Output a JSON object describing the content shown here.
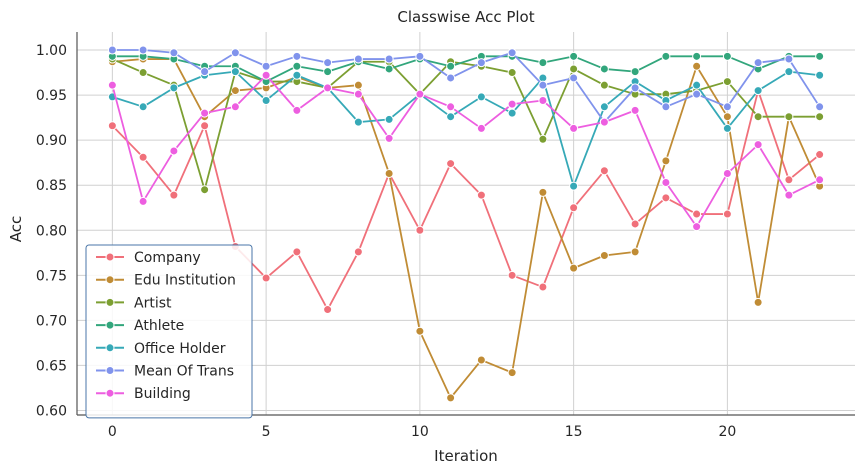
{
  "chart_data": {
    "type": "line",
    "title": "Classwise Acc Plot",
    "xlabel": "Iteration",
    "ylabel": "Acc",
    "xlim": [
      -1.15,
      24.15
    ],
    "ylim": [
      0.595,
      1.02
    ],
    "xticks": [
      0,
      5,
      10,
      15,
      20
    ],
    "yticks": [
      0.6,
      0.65,
      0.7,
      0.75,
      0.8,
      0.85,
      0.9,
      0.95,
      1.0
    ],
    "grid": true,
    "legend_position": "lower-left",
    "x": [
      0,
      1,
      2,
      3,
      4,
      5,
      6,
      7,
      8,
      9,
      10,
      11,
      12,
      13,
      14,
      15,
      16,
      17,
      18,
      19,
      20,
      21,
      22,
      23
    ],
    "series": [
      {
        "name": "Company",
        "color": "#f0707a",
        "values": [
          0.916,
          0.881,
          0.839,
          0.916,
          0.782,
          0.747,
          0.776,
          0.712,
          0.776,
          0.863,
          0.8,
          0.874,
          0.839,
          0.75,
          0.737,
          0.825,
          0.866,
          0.807,
          0.836,
          0.818,
          0.818,
          0.955,
          0.856,
          0.884
        ]
      },
      {
        "name": "Edu Institution",
        "color": "#c08c35",
        "values": [
          0.987,
          0.99,
          0.99,
          0.926,
          0.955,
          0.958,
          0.97,
          0.958,
          0.961,
          0.863,
          0.688,
          0.614,
          0.656,
          0.642,
          0.842,
          0.758,
          0.772,
          0.776,
          0.877,
          0.982,
          0.926,
          0.72,
          0.926,
          0.849
        ]
      },
      {
        "name": "Artist",
        "color": "#7c9f32",
        "values": [
          0.99,
          0.975,
          0.961,
          0.845,
          0.976,
          0.965,
          0.965,
          0.958,
          0.987,
          0.987,
          0.951,
          0.987,
          0.982,
          0.975,
          0.901,
          0.979,
          0.961,
          0.951,
          0.951,
          0.955,
          0.965,
          0.926,
          0.926,
          0.926
        ]
      },
      {
        "name": "Athlete",
        "color": "#32a67c",
        "values": [
          0.993,
          0.993,
          0.99,
          0.982,
          0.982,
          0.965,
          0.982,
          0.976,
          0.987,
          0.979,
          0.99,
          0.982,
          0.993,
          0.993,
          0.986,
          0.993,
          0.979,
          0.976,
          0.993,
          0.993,
          0.993,
          0.979,
          0.993,
          0.993
        ]
      },
      {
        "name": "Office Holder",
        "color": "#36a9b7",
        "values": [
          0.948,
          0.937,
          0.958,
          0.972,
          0.976,
          0.944,
          0.972,
          0.958,
          0.92,
          0.923,
          0.951,
          0.926,
          0.948,
          0.93,
          0.969,
          0.849,
          0.937,
          0.965,
          0.944,
          0.961,
          0.913,
          0.955,
          0.976,
          0.972
        ]
      },
      {
        "name": "Mean Of Trans",
        "color": "#8093ec",
        "values": [
          1.0,
          1.0,
          0.997,
          0.976,
          0.997,
          0.982,
          0.993,
          0.986,
          0.99,
          0.99,
          0.993,
          0.969,
          0.986,
          0.997,
          0.961,
          0.969,
          0.92,
          0.958,
          0.937,
          0.951,
          0.937,
          0.986,
          0.99,
          0.937
        ]
      },
      {
        "name": "Building",
        "color": "#ed5ee0",
        "values": [
          0.961,
          0.832,
          0.888,
          0.93,
          0.937,
          0.972,
          0.933,
          0.958,
          0.951,
          0.902,
          0.951,
          0.937,
          0.913,
          0.94,
          0.944,
          0.913,
          0.92,
          0.933,
          0.853,
          0.804,
          0.863,
          0.895,
          0.839,
          0.856
        ]
      }
    ]
  }
}
